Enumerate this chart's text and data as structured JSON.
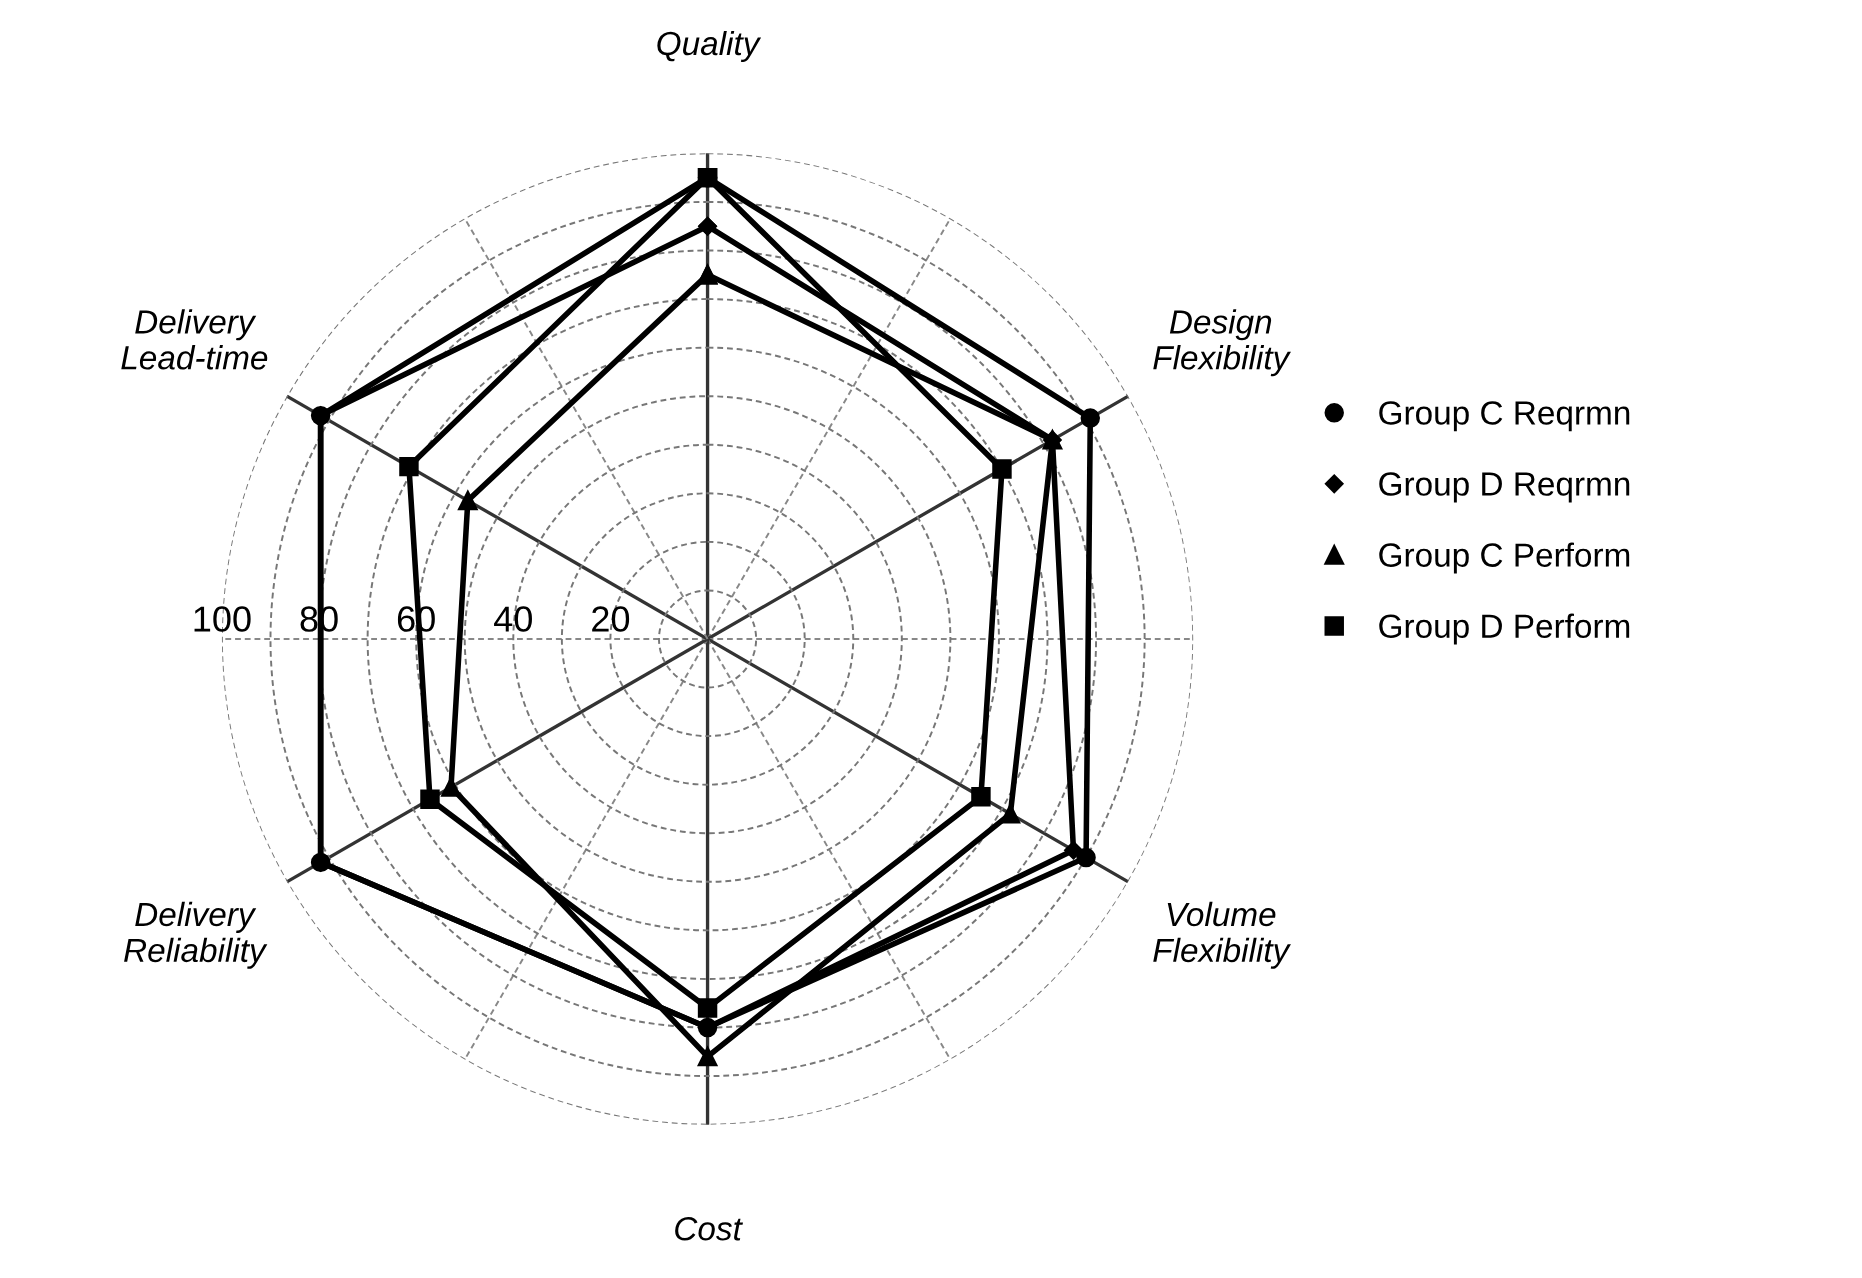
{
  "chart_data": {
    "type": "radar",
    "categories": [
      "Quality",
      "Design\nFlexibility",
      "Volume\nFlexibility",
      "Cost",
      "Delivery\nReliability",
      "Delivery\nLead-time"
    ],
    "series": [
      {
        "name": "Group C Reqrmn",
        "color": "#000000",
        "marker": "circle",
        "values": [
          95,
          91,
          90,
          80,
          92,
          92
        ]
      },
      {
        "name": "Group D Reqrmn",
        "color": "#000000",
        "marker": "diamond",
        "values": [
          85,
          82,
          87,
          80,
          92,
          92
        ]
      },
      {
        "name": "Group C Perform",
        "color": "#000000",
        "marker": "triangle",
        "values": [
          75,
          82,
          72,
          86,
          61,
          57
        ]
      },
      {
        "name": "Group D Perform",
        "color": "#000000",
        "marker": "square",
        "values": [
          95,
          70,
          65,
          76,
          66,
          71
        ]
      }
    ],
    "ylim": [
      0,
      100
    ],
    "yticks": [
      20,
      40,
      60,
      80,
      100
    ],
    "grid": true,
    "legend": "right",
    "line_style": "solid"
  }
}
